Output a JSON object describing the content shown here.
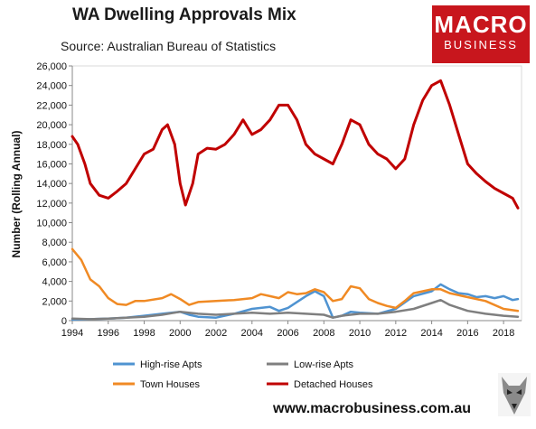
{
  "header": {
    "title": "WA Dwelling Approvals Mix",
    "subtitle": "Source: Australian Bureau of Statistics"
  },
  "logo": {
    "line1": "MACRO",
    "line2": "BUSINESS"
  },
  "footer": {
    "url": "www.macrobusiness.com.au"
  },
  "chart_data": {
    "type": "line",
    "ylabel": "Number (Rolling Annual)",
    "xlabel": "",
    "ylim": [
      0,
      26000
    ],
    "xlim": [
      1994,
      2019
    ],
    "yticks": [
      "0",
      "2,000",
      "4,000",
      "6,000",
      "8,000",
      "10,000",
      "12,000",
      "14,000",
      "16,000",
      "18,000",
      "20,000",
      "22,000",
      "24,000",
      "26,000"
    ],
    "ytick_values": [
      0,
      2000,
      4000,
      6000,
      8000,
      10000,
      12000,
      14000,
      16000,
      18000,
      20000,
      22000,
      24000,
      26000
    ],
    "xticks": [
      "1994",
      "1996",
      "1998",
      "2000",
      "2002",
      "2004",
      "2006",
      "2008",
      "2010",
      "2012",
      "2014",
      "2016",
      "2018"
    ],
    "xtick_values": [
      1994,
      1996,
      1998,
      2000,
      2002,
      2004,
      2006,
      2008,
      2010,
      2012,
      2014,
      2016,
      2018
    ],
    "grid": false,
    "legend_position": "bottom",
    "series": [
      {
        "name": "High-rise Apts",
        "color": "#4f93d1",
        "x": [
          1994,
          1995,
          1996,
          1997,
          1998,
          1999,
          2000,
          2000.5,
          2001,
          2002,
          2003,
          2004,
          2005,
          2005.5,
          2006,
          2007,
          2007.5,
          2008,
          2008.5,
          2009,
          2009.5,
          2010,
          2011,
          2012,
          2013,
          2014,
          2014.5,
          2015,
          2015.5,
          2016,
          2016.5,
          2017,
          2017.5,
          2018,
          2018.5,
          2018.8
        ],
        "y": [
          100,
          150,
          200,
          300,
          500,
          700,
          900,
          600,
          400,
          300,
          700,
          1200,
          1400,
          1000,
          1300,
          2500,
          3000,
          2500,
          300,
          500,
          900,
          800,
          700,
          1200,
          2500,
          3000,
          3700,
          3200,
          2800,
          2700,
          2400,
          2500,
          2300,
          2500,
          2100,
          2200
        ]
      },
      {
        "name": "Low-rise Apts",
        "color": "#7f7f7f",
        "x": [
          1994,
          1995,
          1996,
          1997,
          1998,
          1999,
          2000,
          2001,
          2002,
          2003,
          2004,
          2005,
          2006,
          2007,
          2008,
          2008.5,
          2009,
          2010,
          2011,
          2012,
          2013,
          2014,
          2014.5,
          2015,
          2016,
          2017,
          2018,
          2018.8
        ],
        "y": [
          200,
          150,
          200,
          300,
          400,
          600,
          900,
          700,
          600,
          700,
          800,
          700,
          800,
          700,
          600,
          300,
          500,
          700,
          700,
          900,
          1200,
          1800,
          2100,
          1600,
          1000,
          700,
          500,
          400
        ]
      },
      {
        "name": "Town Houses",
        "color": "#f08a24",
        "x": [
          1994,
          1994.5,
          1995,
          1995.5,
          1996,
          1996.5,
          1997,
          1997.5,
          1998,
          1999,
          1999.5,
          2000,
          2000.5,
          2001,
          2002,
          2003,
          2004,
          2004.5,
          2005,
          2005.5,
          2006,
          2006.5,
          2007,
          2007.5,
          2008,
          2008.5,
          2009,
          2009.5,
          2010,
          2010.5,
          2011,
          2011.5,
          2012,
          2012.5,
          2013,
          2013.5,
          2014,
          2014.5,
          2015,
          2016,
          2017,
          2018,
          2018.8
        ],
        "y": [
          7300,
          6200,
          4200,
          3500,
          2300,
          1700,
          1600,
          2000,
          2000,
          2300,
          2700,
          2200,
          1600,
          1900,
          2000,
          2100,
          2300,
          2700,
          2500,
          2300,
          2900,
          2700,
          2800,
          3200,
          2900,
          2000,
          2200,
          3500,
          3300,
          2200,
          1800,
          1500,
          1300,
          2000,
          2800,
          3000,
          3200,
          3200,
          2800,
          2400,
          2000,
          1200,
          1000
        ]
      },
      {
        "name": "Detached Houses",
        "color": "#c00000",
        "x": [
          1994,
          1994.3,
          1994.7,
          1995,
          1995.5,
          1996,
          1996.5,
          1997,
          1997.5,
          1998,
          1998.5,
          1999,
          1999.3,
          1999.7,
          2000,
          2000.3,
          2000.7,
          2001,
          2001.5,
          2002,
          2002.5,
          2003,
          2003.5,
          2004,
          2004.5,
          2005,
          2005.5,
          2006,
          2006.5,
          2007,
          2007.5,
          2008,
          2008.5,
          2009,
          2009.5,
          2010,
          2010.5,
          2011,
          2011.5,
          2012,
          2012.5,
          2013,
          2013.5,
          2014,
          2014.5,
          2015,
          2015.5,
          2016,
          2016.5,
          2017,
          2017.5,
          2018,
          2018.5,
          2018.8
        ],
        "y": [
          18800,
          18000,
          16000,
          14000,
          12800,
          12500,
          13200,
          14000,
          15500,
          17000,
          17500,
          19500,
          20000,
          18000,
          14000,
          11800,
          14000,
          17000,
          17600,
          17500,
          18000,
          19000,
          20500,
          19000,
          19500,
          20500,
          22000,
          22000,
          20500,
          18000,
          17000,
          16500,
          16000,
          18000,
          20500,
          20000,
          18000,
          17000,
          16500,
          15500,
          16500,
          20000,
          22500,
          24000,
          24500,
          22000,
          19000,
          16000,
          15000,
          14200,
          13500,
          13000,
          12500,
          11500
        ]
      }
    ]
  }
}
